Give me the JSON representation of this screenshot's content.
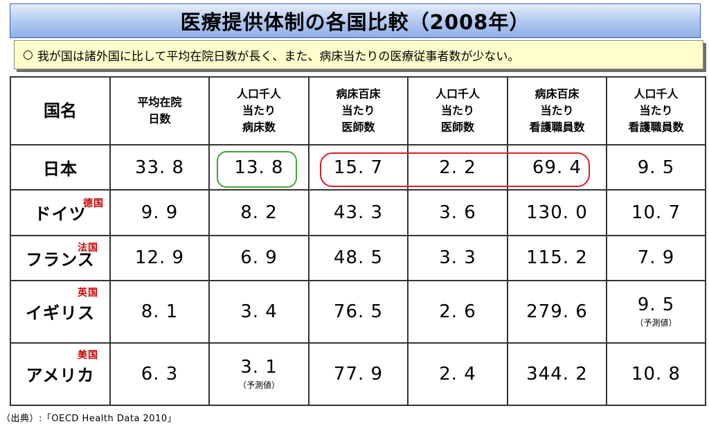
{
  "title": "医療提供体制の各国比較（2008年）",
  "note": {
    "bullet": "○",
    "text": "我が国は諸外国に比して平均在院日数が長く、また、病床当たりの医療従事者数が少ない。"
  },
  "table": {
    "headers": [
      "国名",
      "平均在院\n日数",
      "人口千人\n当たり\n病床数",
      "病床百床\n当たり\n医師数",
      "人口千人\n当たり\n医師数",
      "病床百床\n当たり\n看護職員数",
      "人口千人\n当たり\n看護職員数"
    ],
    "rows": [
      {
        "country": "日本",
        "abbr": "",
        "cells": [
          "33. 8",
          "13. 8",
          "15. 7",
          "2. 2",
          "69. 4",
          "9. 5"
        ],
        "notes": [
          "",
          "",
          "",
          "",
          "",
          ""
        ]
      },
      {
        "country": "ドイツ",
        "abbr": "德国",
        "cells": [
          "9. 9",
          "8. 2",
          "43. 3",
          "3. 6",
          "130. 0",
          "10. 7"
        ],
        "notes": [
          "",
          "",
          "",
          "",
          "",
          ""
        ]
      },
      {
        "country": "フランス",
        "abbr": "法国",
        "cells": [
          "12. 9",
          "6. 9",
          "48. 5",
          "3. 3",
          "115. 2",
          "7. 9"
        ],
        "notes": [
          "",
          "",
          "",
          "",
          "",
          ""
        ]
      },
      {
        "country": "イギリス",
        "abbr": "英国",
        "cells": [
          "8. 1",
          "3. 4",
          "76. 5",
          "2. 6",
          "279. 6",
          "9. 5"
        ],
        "notes": [
          "",
          "",
          "",
          "",
          "",
          "（予測値）"
        ]
      },
      {
        "country": "アメリカ",
        "abbr": "美国",
        "cells": [
          "6. 3",
          "3. 1",
          "77. 9",
          "2. 4",
          "344. 2",
          "10. 8"
        ],
        "notes": [
          "",
          "（予測値）",
          "",
          "",
          "",
          ""
        ]
      }
    ]
  },
  "source": "（出典）:「OECD  Health  Data  2010」",
  "colors": {
    "highlight_green": "#3ca53c",
    "highlight_red": "#d62020",
    "abbr_red": "#cc0000",
    "note_background": "#ffffcc"
  }
}
